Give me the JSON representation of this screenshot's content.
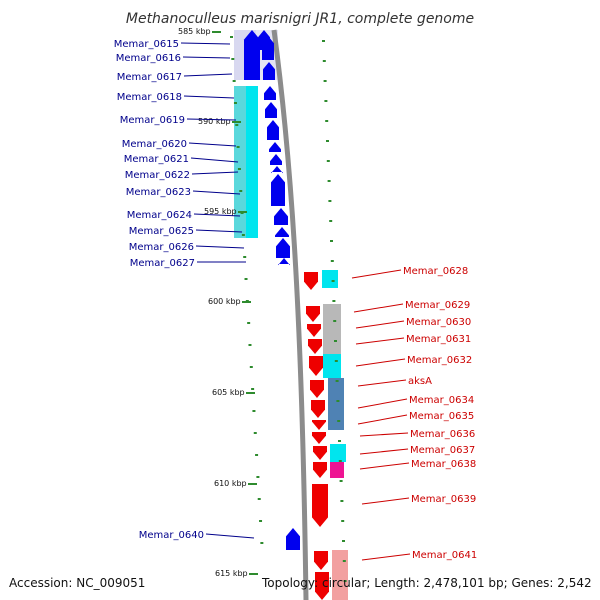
{
  "title": "Methanoculleus marisnigri JR1, complete genome",
  "footer": {
    "accession": "Accession: NC_009051",
    "topology": "Topology: circular; Length: 2,478,101 bp; Genes: 2,542"
  },
  "colors": {
    "forward_label": "#00008b",
    "reverse_label": "#cc0000",
    "forward_gene": "#0000ee",
    "reverse_gene": "#ee0000",
    "backbone": "#8c8c8c",
    "tick": "#2e8b2e",
    "cyan": "#00e5ee",
    "grey": "#b8b8b8",
    "steelblue": "#4f82b4",
    "magenta": "#ee1493",
    "pink": "#f2a0a0"
  },
  "kbp_ticks": [
    "585 kbp",
    "590 kbp",
    "595 kbp",
    "600 kbp",
    "605 kbp",
    "610 kbp",
    "615 kbp"
  ],
  "forward_genes": [
    {
      "name": "Memar_0615"
    },
    {
      "name": "Memar_0616"
    },
    {
      "name": "Memar_0617"
    },
    {
      "name": "Memar_0618"
    },
    {
      "name": "Memar_0619"
    },
    {
      "name": "Memar_0620"
    },
    {
      "name": "Memar_0621"
    },
    {
      "name": "Memar_0622"
    },
    {
      "name": "Memar_0623"
    },
    {
      "name": "Memar_0624"
    },
    {
      "name": "Memar_0625"
    },
    {
      "name": "Memar_0626"
    },
    {
      "name": "Memar_0627"
    },
    {
      "name": "Memar_0640"
    }
  ],
  "reverse_genes": [
    {
      "name": "Memar_0628"
    },
    {
      "name": "Memar_0629"
    },
    {
      "name": "Memar_0630"
    },
    {
      "name": "Memar_0631"
    },
    {
      "name": "Memar_0632"
    },
    {
      "name": "aksA"
    },
    {
      "name": "Memar_0634"
    },
    {
      "name": "Memar_0635"
    },
    {
      "name": "Memar_0636"
    },
    {
      "name": "Memar_0637"
    },
    {
      "name": "Memar_0638"
    },
    {
      "name": "Memar_0639"
    },
    {
      "name": "Memar_0641"
    }
  ]
}
